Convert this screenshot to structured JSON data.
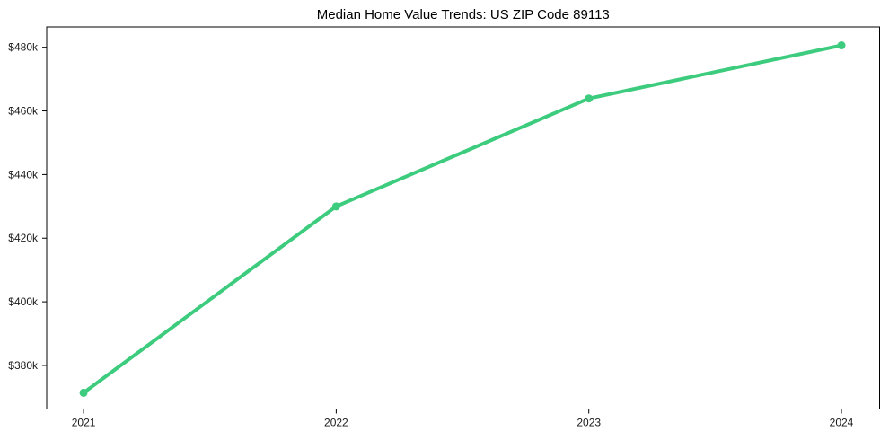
{
  "figure": {
    "background": "#ffffff"
  },
  "chart_data": {
    "type": "line",
    "title": "Median Home Value Trends: US ZIP Code 89113",
    "x": [
      2021,
      2022,
      2023,
      2024
    ],
    "series": [
      {
        "name": "Median home value",
        "values": [
          371400,
          430000,
          463900,
          480600
        ],
        "color": "#3dcc7e",
        "line_width": 4,
        "marker": "circle",
        "marker_radius": 4.5
      }
    ],
    "xlabel": "",
    "ylabel": "",
    "xlim": [
      2020.854,
      2024.151
    ],
    "ylim": [
      366300,
      486400
    ],
    "xticks": {
      "values": [
        2021,
        2022,
        2023,
        2024
      ],
      "labels": [
        "2021",
        "2022",
        "2023",
        "2024"
      ]
    },
    "yticks": {
      "values": [
        380000,
        400000,
        420000,
        440000,
        460000,
        480000
      ],
      "labels": [
        "$380k",
        "$400k",
        "$420k",
        "$440k",
        "$460k",
        "$480k"
      ]
    },
    "grid": false,
    "legend": "none",
    "axis_color": "#000000",
    "text_color": "#1a1a1a"
  }
}
